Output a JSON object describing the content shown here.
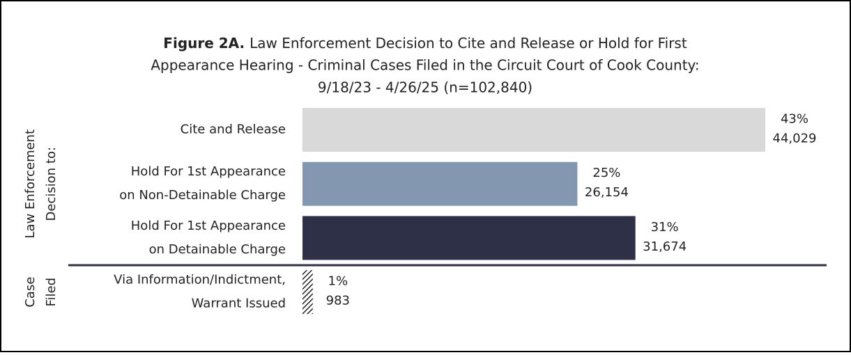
{
  "chart_data": {
    "type": "bar",
    "orientation": "horizontal",
    "title_bold": "Figure 2A.",
    "title_lines": [
      "Law Enforcement Decision to Cite and Release or Hold for First",
      "Appearance Hearing - Criminal Cases Filed in the Circuit Court of Cook County:",
      "9/18/23 - 4/26/25 (n=102,840)"
    ],
    "groups": [
      {
        "lines": [
          "Law Enforcement",
          "Decision to:"
        ],
        "members": 3
      },
      {
        "lines": [
          "Case",
          "Filed"
        ],
        "members": 1
      }
    ],
    "categories": [
      [
        "Cite and Release"
      ],
      [
        "Hold For 1st Appearance",
        "on Non-Detainable Charge"
      ],
      [
        "Hold For 1st Appearance",
        "on Detainable Charge"
      ],
      [
        "Via Information/Indictment,",
        "Warrant Issued"
      ]
    ],
    "values": [
      44029,
      26154,
      31674,
      983
    ],
    "value_labels": [
      "44,029",
      "26,154",
      "31,674",
      "983"
    ],
    "percent_labels": [
      "43%",
      "25%",
      "31%",
      "1%"
    ],
    "colors": [
      "#d9d9d9",
      "#8497b0",
      "#2e3047",
      "hatch"
    ]
  }
}
